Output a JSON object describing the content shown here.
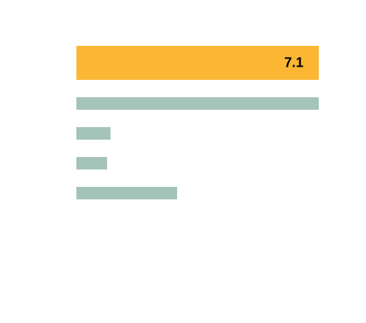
{
  "chart_data": {
    "type": "bar",
    "orientation": "horizontal",
    "categories": [
      "",
      "",
      "",
      "",
      ""
    ],
    "values": [
      7.1,
      7.1,
      1.0,
      0.9,
      2.95
    ],
    "highlight_index": 0,
    "value_labels": [
      "7.1",
      "",
      "",
      "",
      ""
    ],
    "xlim": [
      0,
      7.1
    ],
    "grid": false,
    "colors": {
      "highlight": "#FBB734",
      "default": "#A4C3B9",
      "label_text": "#000000"
    }
  }
}
